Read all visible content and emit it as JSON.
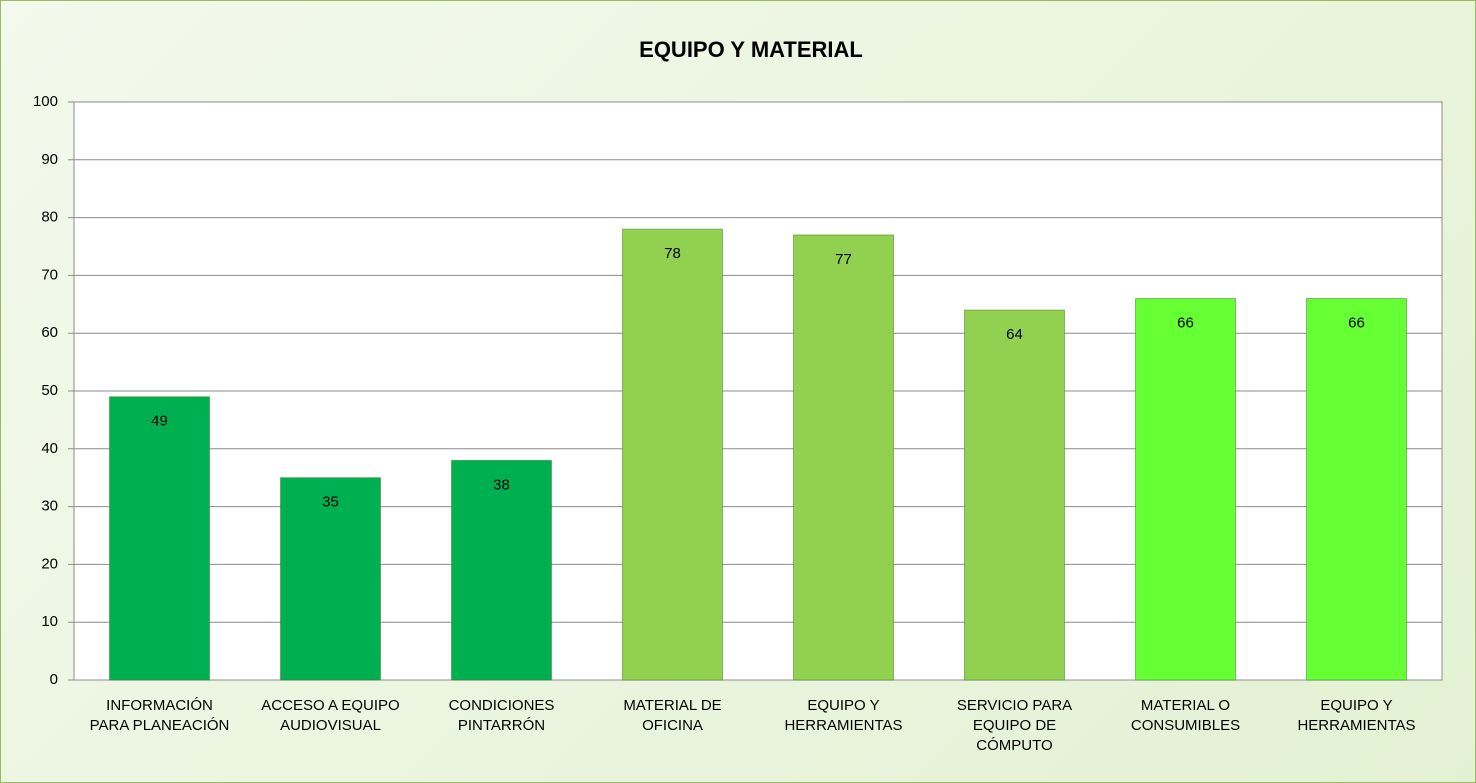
{
  "chart_data": {
    "type": "bar",
    "title": "EQUIPO Y MATERIAL",
    "categories": [
      "INFORMACIÓN\nPARA PLANEACIÓN",
      "ACCESO A EQUIPO\nAUDIOVISUAL",
      "CONDICIONES\nPINTARRÓN",
      "MATERIAL DE\nOFICINA",
      "EQUIPO Y\nHERRAMIENTAS",
      "SERVICIO PARA\nEQUIPO DE\nCÓMPUTO",
      "MATERIAL O\nCONSUMIBLES",
      "EQUIPO Y\nHERRAMIENTAS"
    ],
    "values": [
      49,
      35,
      38,
      78,
      77,
      64,
      66,
      66
    ],
    "colors": [
      "#00b050",
      "#00b050",
      "#00b050",
      "#92d050",
      "#92d050",
      "#92d050",
      "#66ff33",
      "#66ff33"
    ],
    "ylim": [
      0,
      100
    ],
    "yticks": [
      0,
      10,
      20,
      30,
      40,
      50,
      60,
      70,
      80,
      90,
      100
    ],
    "grid": true
  }
}
